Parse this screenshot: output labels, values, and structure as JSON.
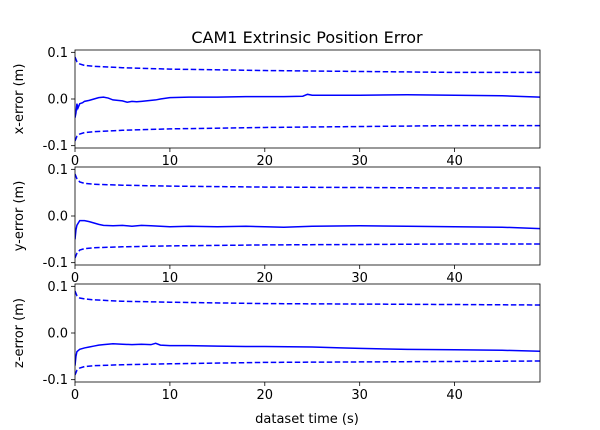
{
  "chart_data": {
    "title": "CAM1 Extrinsic Position Error",
    "xlabel": "dataset time (s)",
    "xlim": [
      0,
      49
    ],
    "xticks": [
      0,
      10,
      20,
      30,
      40
    ],
    "ylim": [
      -0.105,
      0.105
    ],
    "yticks": [
      -0.1,
      0.0,
      0.1
    ],
    "grid": false,
    "color": "#0000ff",
    "panels": [
      {
        "type": "line",
        "ylabel": "x-error (m)",
        "series": [
          {
            "style": "solid",
            "x": [
              0,
              0.1,
              0.2,
              0.3,
              0.5,
              0.8,
              1,
              1.5,
              2,
              2.5,
              3,
              3.5,
              4,
              4.5,
              5,
              5.5,
              6,
              6.5,
              7,
              7.5,
              8,
              8.5,
              9,
              10,
              12,
              15,
              18,
              20,
              22,
              24,
              24.5,
              25,
              27,
              30,
              35,
              40,
              45,
              49
            ],
            "y": [
              -0.04,
              -0.03,
              -0.01,
              -0.02,
              -0.01,
              -0.008,
              -0.005,
              -0.003,
              0.0,
              0.003,
              0.004,
              0.002,
              -0.002,
              -0.003,
              -0.004,
              -0.007,
              -0.005,
              -0.006,
              -0.005,
              -0.004,
              -0.003,
              -0.002,
              0.0,
              0.003,
              0.004,
              0.004,
              0.005,
              0.005,
              0.005,
              0.006,
              0.01,
              0.008,
              0.008,
              0.008,
              0.009,
              0.008,
              0.007,
              0.004
            ]
          },
          {
            "style": "dashed",
            "x": [
              0,
              0.2,
              0.5,
              1,
              2,
              5,
              10,
              20,
              30,
              40,
              49
            ],
            "y": [
              0.09,
              0.08,
              0.075,
              0.072,
              0.07,
              0.067,
              0.064,
              0.061,
              0.059,
              0.057,
              0.057
            ]
          },
          {
            "style": "dashed",
            "x": [
              0,
              0.2,
              0.5,
              1,
              2,
              5,
              10,
              20,
              30,
              40,
              49
            ],
            "y": [
              -0.09,
              -0.08,
              -0.075,
              -0.072,
              -0.07,
              -0.067,
              -0.064,
              -0.061,
              -0.059,
              -0.057,
              -0.057
            ]
          }
        ]
      },
      {
        "type": "line",
        "ylabel": "y-error (m)",
        "series": [
          {
            "style": "solid",
            "x": [
              0,
              0.1,
              0.2,
              0.5,
              1,
              1.5,
              2,
              2.5,
              3,
              4,
              5,
              6,
              7,
              8,
              9,
              10,
              12,
              15,
              18,
              20,
              22,
              25,
              30,
              35,
              40,
              45,
              49
            ],
            "y": [
              -0.05,
              -0.03,
              -0.02,
              -0.01,
              -0.01,
              -0.012,
              -0.015,
              -0.018,
              -0.02,
              -0.021,
              -0.02,
              -0.022,
              -0.02,
              -0.021,
              -0.022,
              -0.023,
              -0.022,
              -0.023,
              -0.022,
              -0.023,
              -0.024,
              -0.022,
              -0.021,
              -0.022,
              -0.023,
              -0.024,
              -0.027
            ]
          },
          {
            "style": "dashed",
            "x": [
              0,
              0.2,
              0.5,
              1,
              2,
              5,
              10,
              20,
              30,
              40,
              49
            ],
            "y": [
              0.09,
              0.08,
              0.073,
              0.07,
              0.068,
              0.066,
              0.064,
              0.062,
              0.061,
              0.06,
              0.06
            ]
          },
          {
            "style": "dashed",
            "x": [
              0,
              0.2,
              0.5,
              1,
              2,
              5,
              10,
              20,
              30,
              40,
              49
            ],
            "y": [
              -0.09,
              -0.08,
              -0.073,
              -0.07,
              -0.068,
              -0.066,
              -0.064,
              -0.062,
              -0.061,
              -0.06,
              -0.06
            ]
          }
        ]
      },
      {
        "type": "line",
        "ylabel": "z-error (m)",
        "series": [
          {
            "style": "solid",
            "x": [
              0,
              0.1,
              0.2,
              0.5,
              1,
              1.5,
              2,
              2.5,
              3,
              4,
              5,
              6,
              7,
              8,
              8.5,
              9,
              10,
              12,
              15,
              18,
              20,
              25,
              28,
              30,
              35,
              40,
              45,
              49
            ],
            "y": [
              -0.07,
              -0.05,
              -0.04,
              -0.035,
              -0.032,
              -0.03,
              -0.028,
              -0.026,
              -0.025,
              -0.023,
              -0.024,
              -0.025,
              -0.024,
              -0.025,
              -0.022,
              -0.026,
              -0.027,
              -0.027,
              -0.028,
              -0.029,
              -0.029,
              -0.03,
              -0.032,
              -0.033,
              -0.035,
              -0.036,
              -0.037,
              -0.039
            ]
          },
          {
            "style": "dashed",
            "x": [
              0,
              0.2,
              0.5,
              1,
              2,
              5,
              10,
              20,
              30,
              40,
              49
            ],
            "y": [
              0.09,
              0.08,
              0.075,
              0.073,
              0.071,
              0.068,
              0.066,
              0.063,
              0.062,
              0.061,
              0.06
            ]
          },
          {
            "style": "dashed",
            "x": [
              0,
              0.2,
              0.5,
              1,
              2,
              5,
              10,
              20,
              30,
              40,
              49
            ],
            "y": [
              -0.09,
              -0.08,
              -0.075,
              -0.072,
              -0.07,
              -0.068,
              -0.066,
              -0.063,
              -0.062,
              -0.061,
              -0.06
            ]
          }
        ]
      }
    ]
  }
}
